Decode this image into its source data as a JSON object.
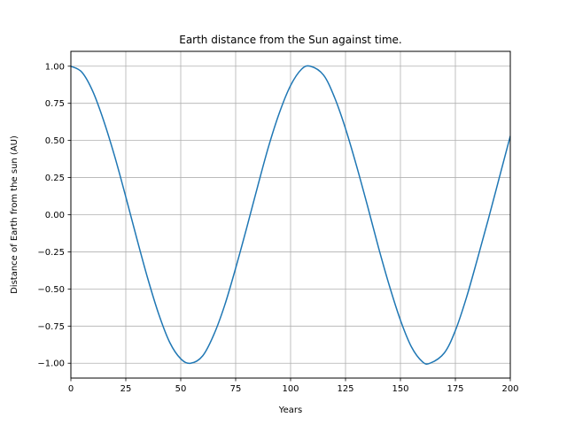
{
  "chart_data": {
    "type": "line",
    "title": "Earth distance from the Sun against time.",
    "xlabel": "Years",
    "ylabel": "Distance of Earth from the sun (AU)",
    "xlim": [
      0,
      200
    ],
    "ylim": [
      -1.1,
      1.1
    ],
    "xticks": [
      0,
      25,
      50,
      75,
      100,
      125,
      150,
      175,
      200
    ],
    "xtick_labels": [
      "0",
      "25",
      "50",
      "75",
      "100",
      "125",
      "150",
      "175",
      "200"
    ],
    "yticks": [
      -1.0,
      -0.75,
      -0.5,
      -0.25,
      0.0,
      0.25,
      0.5,
      0.75,
      1.0
    ],
    "ytick_labels": [
      "−1.00",
      "−0.75",
      "−0.50",
      "−0.25",
      "0.00",
      "0.25",
      "0.50",
      "0.75",
      "1.00"
    ],
    "grid": true,
    "legend": false,
    "line_color": "#1f77b4",
    "grid_color": "#b0b0b0",
    "series": [
      {
        "x": [
          0,
          5,
          10,
          15,
          20,
          25,
          30,
          35,
          40,
          45,
          50,
          54.5,
          60,
          65,
          70,
          75,
          80,
          85,
          90,
          95,
          100,
          105,
          109,
          115,
          120,
          125,
          130,
          135,
          140,
          145,
          150,
          155,
          160,
          163.5,
          170,
          175,
          180,
          185,
          190,
          195,
          200
        ],
        "values": [
          1.0,
          0.96,
          0.83,
          0.63,
          0.39,
          0.12,
          -0.16,
          -0.43,
          -0.67,
          -0.86,
          -0.97,
          -1.0,
          -0.95,
          -0.81,
          -0.61,
          -0.36,
          -0.09,
          0.19,
          0.46,
          0.69,
          0.87,
          0.98,
          1.0,
          0.94,
          0.79,
          0.58,
          0.33,
          0.06,
          -0.22,
          -0.48,
          -0.71,
          -0.89,
          -0.99,
          -1.0,
          -0.93,
          -0.78,
          -0.56,
          -0.3,
          -0.03,
          0.25,
          0.53
        ]
      }
    ]
  }
}
